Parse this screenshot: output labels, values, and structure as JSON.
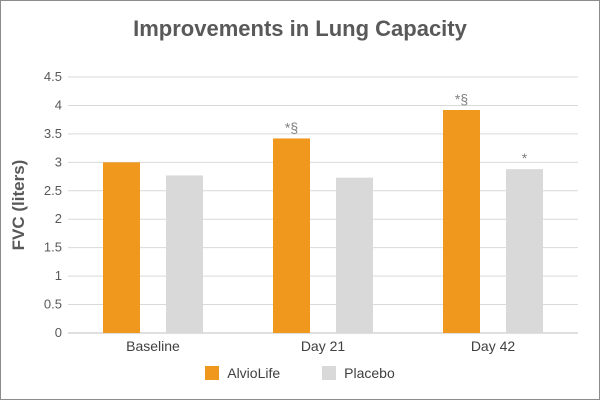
{
  "chart_data": {
    "type": "bar",
    "title": "Improvements in Lung Capacity",
    "ylabel": "FVC (liters)",
    "xlabel": "",
    "categories": [
      "Baseline",
      "Day 21",
      "Day 42"
    ],
    "ylim": [
      0,
      4.5
    ],
    "yticks": [
      "0",
      "0.5",
      "1",
      "1.5",
      "2",
      "2.5",
      "3",
      "3.5",
      "4",
      "4.5"
    ],
    "grid": true,
    "legend_position": "bottom",
    "series": [
      {
        "name": "AlvioLife",
        "color": "#f0981e",
        "values": [
          3.0,
          3.42,
          3.92
        ],
        "annotations": [
          "",
          "*§",
          "*§"
        ]
      },
      {
        "name": "Placebo",
        "color": "#d9d9d9",
        "values": [
          2.77,
          2.73,
          2.88
        ],
        "annotations": [
          "",
          "",
          "*"
        ]
      }
    ]
  }
}
